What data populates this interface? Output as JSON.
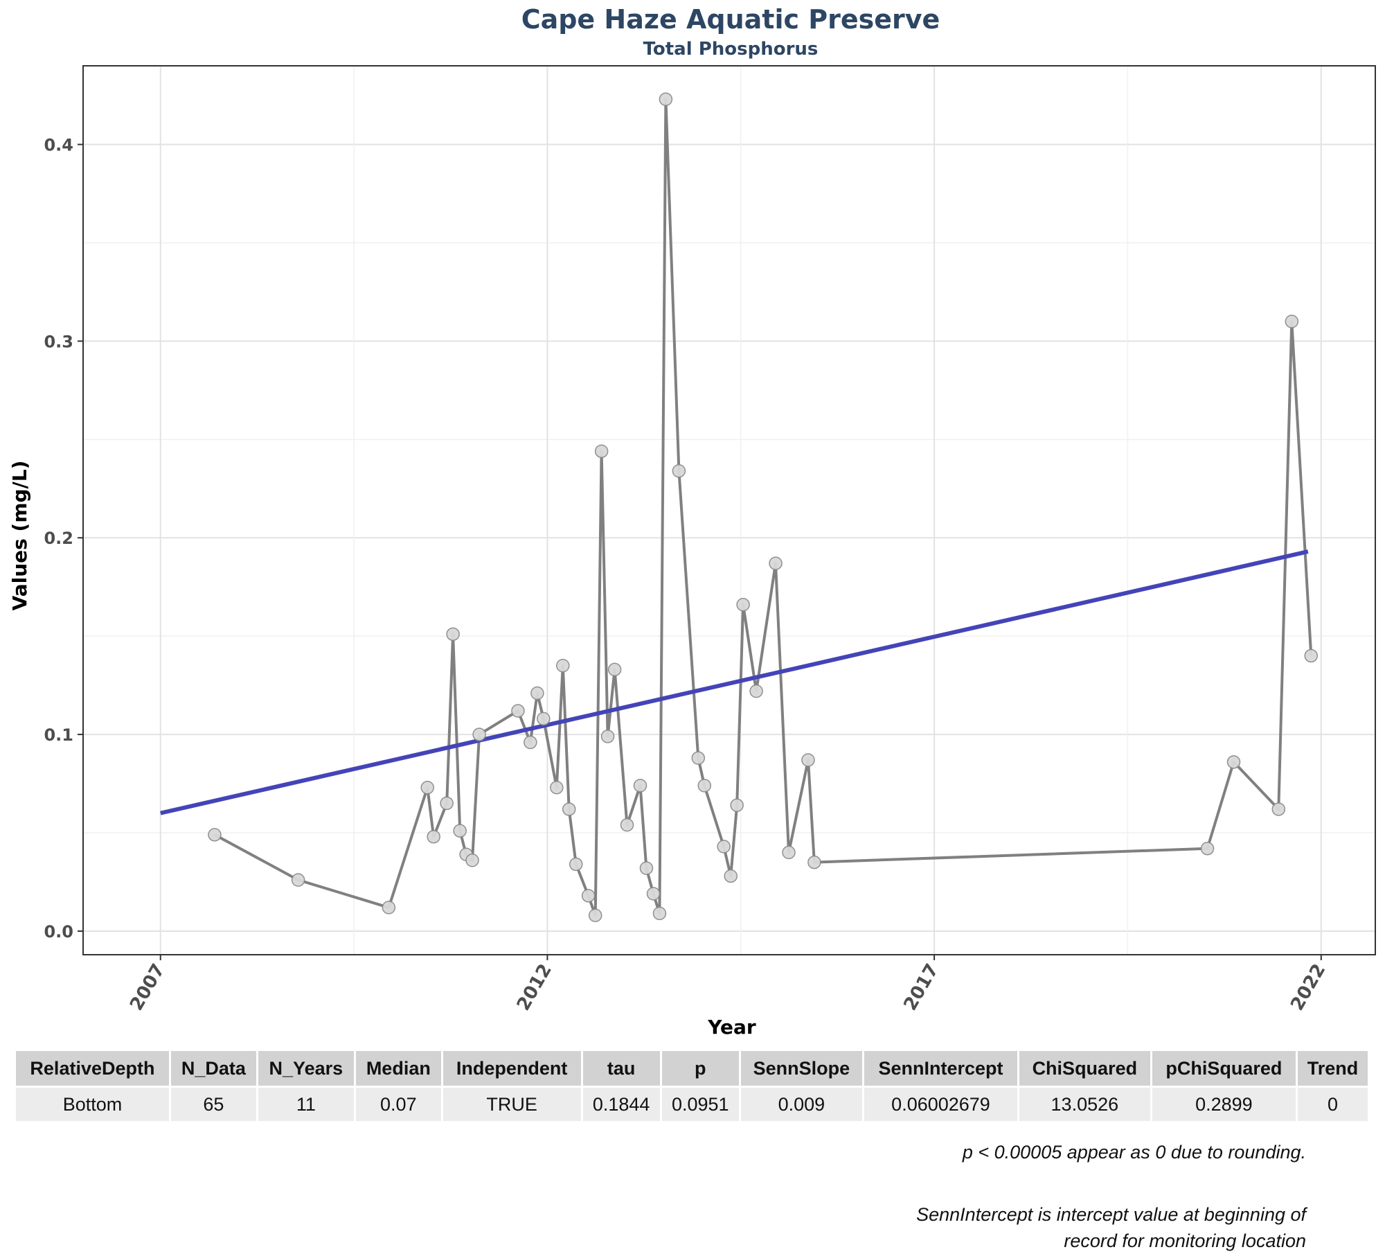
{
  "title": "Cape Haze Aquatic Preserve",
  "subtitle": "Total Phosphorus",
  "chart_data": {
    "type": "line",
    "xlabel": "Year",
    "ylabel": "Values (mg/L)",
    "xlim": [
      2006,
      2022.7
    ],
    "ylim": [
      -0.012,
      0.44
    ],
    "x_ticks": [
      2007,
      2012,
      2017,
      2022
    ],
    "y_ticks": [
      0.0,
      0.1,
      0.2,
      0.3,
      0.4
    ],
    "y_tick_labels": [
      "0.0",
      "0.1",
      "0.2",
      "0.3",
      "0.4"
    ],
    "grid": true,
    "series": [
      {
        "color": "#808080",
        "marker_fill": "#d9d9d9",
        "points": [
          [
            2007.7,
            0.049
          ],
          [
            2008.78,
            0.026
          ],
          [
            2009.95,
            0.012
          ],
          [
            2010.45,
            0.073
          ],
          [
            2010.53,
            0.048
          ],
          [
            2010.7,
            0.065
          ],
          [
            2010.78,
            0.151
          ],
          [
            2010.87,
            0.051
          ],
          [
            2010.95,
            0.039
          ],
          [
            2011.03,
            0.036
          ],
          [
            2011.12,
            0.1
          ],
          [
            2011.62,
            0.112
          ],
          [
            2011.78,
            0.096
          ],
          [
            2011.87,
            0.121
          ],
          [
            2011.95,
            0.108
          ],
          [
            2012.12,
            0.073
          ],
          [
            2012.2,
            0.135
          ],
          [
            2012.28,
            0.062
          ],
          [
            2012.37,
            0.034
          ],
          [
            2012.53,
            0.018
          ],
          [
            2012.62,
            0.008
          ],
          [
            2012.7,
            0.244
          ],
          [
            2012.78,
            0.099
          ],
          [
            2012.87,
            0.133
          ],
          [
            2013.03,
            0.054
          ],
          [
            2013.2,
            0.074
          ],
          [
            2013.28,
            0.032
          ],
          [
            2013.37,
            0.019
          ],
          [
            2013.45,
            0.009
          ],
          [
            2013.53,
            0.423
          ],
          [
            2013.7,
            0.234
          ],
          [
            2013.95,
            0.088
          ],
          [
            2014.03,
            0.074
          ],
          [
            2014.28,
            0.043
          ],
          [
            2014.37,
            0.028
          ],
          [
            2014.45,
            0.064
          ],
          [
            2014.53,
            0.166
          ],
          [
            2014.7,
            0.122
          ],
          [
            2014.95,
            0.187
          ],
          [
            2015.12,
            0.04
          ],
          [
            2015.37,
            0.087
          ],
          [
            2015.45,
            0.035
          ],
          [
            2020.53,
            0.042
          ],
          [
            2020.87,
            0.086
          ],
          [
            2021.45,
            0.062
          ],
          [
            2021.62,
            0.31
          ],
          [
            2021.87,
            0.14
          ]
        ]
      },
      {
        "color": "#4444b8",
        "points": [
          [
            2007.0,
            0.06
          ],
          [
            2021.83,
            0.193
          ]
        ]
      }
    ]
  },
  "table": {
    "headers": [
      "RelativeDepth",
      "N_Data",
      "N_Years",
      "Median",
      "Independent",
      "tau",
      "p",
      "SennSlope",
      "SennIntercept",
      "ChiSquared",
      "pChiSquared",
      "Trend"
    ],
    "rows": [
      [
        "Bottom",
        "65",
        "11",
        "0.07",
        "TRUE",
        "0.1844",
        "0.0951",
        "0.009",
        "0.06002679",
        "13.0526",
        "0.2899",
        "0"
      ]
    ]
  },
  "notes": {
    "rounding": "p < 0.00005 appear as 0 due to rounding.",
    "intercept_line1": "SennIntercept is intercept value at beginning of",
    "intercept_line2": "record for monitoring location"
  }
}
